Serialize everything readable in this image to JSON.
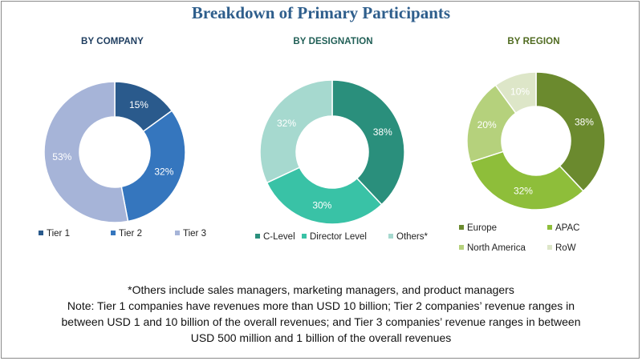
{
  "title": "Breakdown of Primary Participants",
  "chart_data": [
    {
      "type": "pie",
      "subtitle": "BY COMPANY",
      "subtitle_color": "#1f3e60",
      "categories": [
        "Tier 1",
        "Tier 2",
        "Tier 3"
      ],
      "values": [
        15,
        32,
        53
      ],
      "labels": [
        "15%",
        "32%",
        "53%"
      ],
      "colors": [
        "#2a5a8c",
        "#3576be",
        "#a6b4d8"
      ],
      "label_colors": [
        "#ffffff",
        "#ffffff",
        "#ffffff"
      ],
      "legend_placement": "bottom"
    },
    {
      "type": "pie",
      "subtitle": "BY DESIGNATION",
      "subtitle_color": "#1f5e55",
      "categories": [
        "C-Level",
        "Director Level",
        "Others*"
      ],
      "values": [
        38,
        30,
        32
      ],
      "labels": [
        "38%",
        "30%",
        "32%"
      ],
      "colors": [
        "#2a8f7c",
        "#39c2a6",
        "#a6d9cf"
      ],
      "label_colors": [
        "#ffffff",
        "#ffffff",
        "#ffffff"
      ],
      "legend_placement": "bottom"
    },
    {
      "type": "pie",
      "subtitle": "BY REGION",
      "subtitle_color": "#4f6a1f",
      "categories": [
        "Europe",
        "APAC",
        "North America",
        "RoW"
      ],
      "values": [
        38,
        32,
        20,
        10
      ],
      "labels": [
        "38%",
        "32%",
        "20%",
        "10%"
      ],
      "colors": [
        "#6b8a2e",
        "#8ebe3a",
        "#b5d17c",
        "#dde6c8"
      ],
      "label_colors": [
        "#ffffff",
        "#ffffff",
        "#ffffff",
        "#ffffff"
      ],
      "legend_placement": "bottom"
    }
  ],
  "notes": {
    "others": "*Others include sales managers, marketing managers, and product managers",
    "note_line1": "Note: Tier 1 companies have revenues more than USD 10 billion; Tier 2 companies’ revenue ranges in",
    "note_line2": "between USD 1 and 10 billion of the overall revenues; and Tier 3 companies’ revenue ranges in between",
    "note_line3": "USD 500 million and 1 billion of the overall revenues"
  }
}
